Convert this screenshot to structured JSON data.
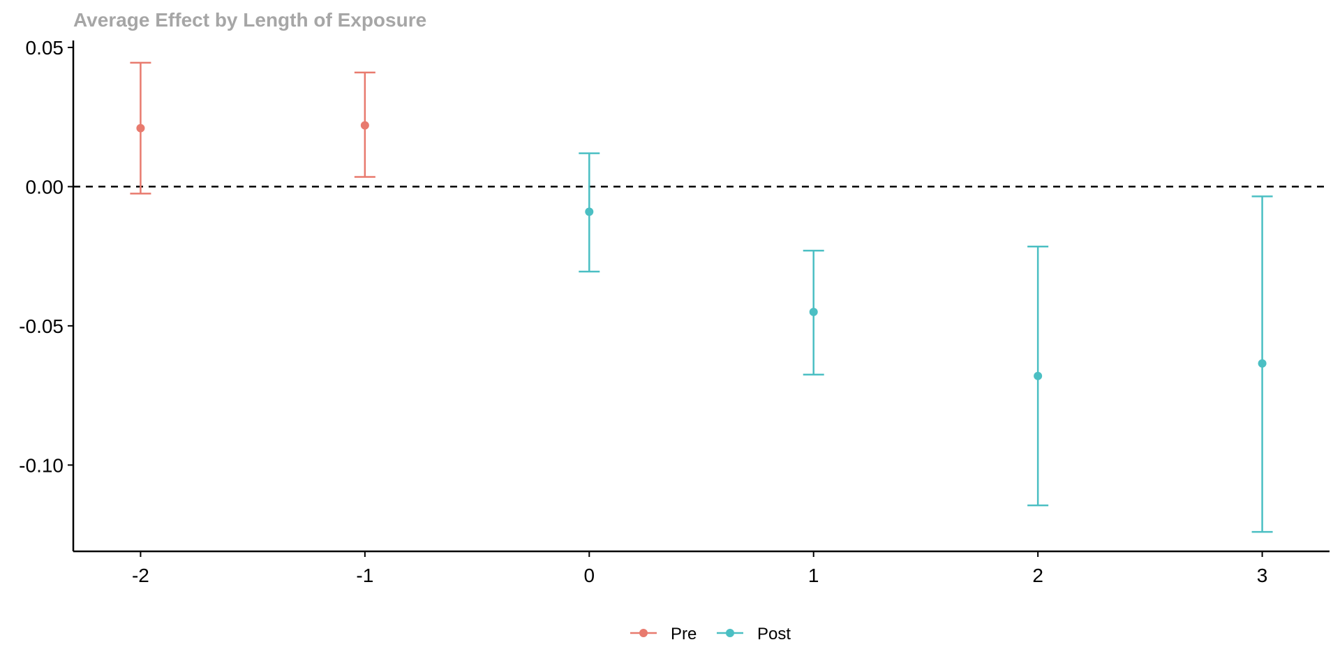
{
  "chart_data": {
    "type": "scatter",
    "title": "Average Effect by Length of Exposure",
    "xlabel": "",
    "ylabel": "",
    "xlim": [
      -2.3,
      3.3
    ],
    "ylim": [
      -0.131,
      0.052
    ],
    "x_ticks": [
      -2,
      -1,
      0,
      1,
      2,
      3
    ],
    "x_tick_labels": [
      "-2",
      "-1",
      "0",
      "1",
      "2",
      "3"
    ],
    "y_ticks": [
      0.05,
      0.0,
      -0.05,
      -0.1
    ],
    "y_tick_labels": [
      "0.05",
      "0.00",
      "-0.05",
      "-0.10"
    ],
    "reference_line": {
      "y": 0.0,
      "style": "dashed"
    },
    "grid": false,
    "legend": {
      "placement": "bottom-center"
    },
    "series": [
      {
        "name": "Pre",
        "color": "#E87A6E",
        "points": [
          {
            "x": -2,
            "y": 0.021,
            "ci_low": -0.0025,
            "ci_high": 0.0445
          },
          {
            "x": -1,
            "y": 0.022,
            "ci_low": 0.0035,
            "ci_high": 0.041
          }
        ]
      },
      {
        "name": "Post",
        "color": "#4BBFC3",
        "points": [
          {
            "x": 0,
            "y": -0.009,
            "ci_low": -0.0305,
            "ci_high": 0.012
          },
          {
            "x": 1,
            "y": -0.045,
            "ci_low": -0.0675,
            "ci_high": -0.023
          },
          {
            "x": 2,
            "y": -0.068,
            "ci_low": -0.1145,
            "ci_high": -0.0215
          },
          {
            "x": 3,
            "y": -0.0635,
            "ci_low": -0.124,
            "ci_high": -0.0035
          }
        ]
      }
    ]
  }
}
